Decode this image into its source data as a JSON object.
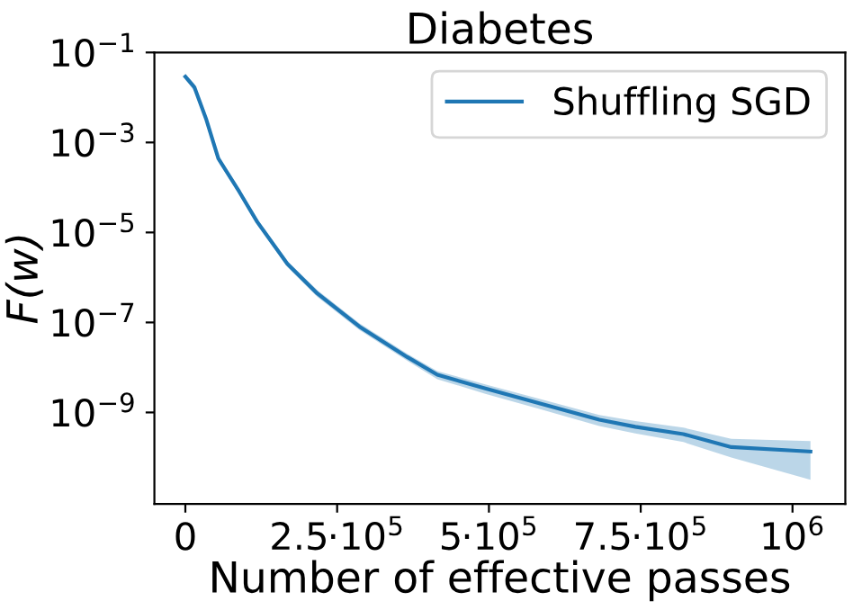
{
  "chart_data": {
    "type": "line",
    "title": "Diabetes",
    "xlabel": "Number of effective passes",
    "ylabel": "F(w)",
    "x": [
      0,
      14800,
      34600,
      54300,
      88900,
      118600,
      168000,
      217400,
      286600,
      365600,
      415000,
      494100,
      583000,
      681800,
      741100,
      820200,
      899200,
      1029600
    ],
    "series": [
      {
        "name": "Shuffling SGD",
        "color": "#1f77b4",
        "values": [
          0.029,
          0.017,
          0.0032,
          0.00044,
          8e-05,
          1.7e-05,
          2e-06,
          4.4e-07,
          8.1e-08,
          1.7e-08,
          6.9e-09,
          3.4e-09,
          1.6e-09,
          6.9e-10,
          4.8e-10,
          3.3e-10,
          1.7e-10,
          1.35e-10
        ],
        "lower": [
          0.025,
          0.014,
          0.0028,
          0.00038,
          7e-05,
          1.5e-05,
          1.7e-06,
          3.7e-07,
          6.8e-08,
          1.4e-08,
          5.5e-09,
          2.6e-09,
          1.2e-09,
          5e-10,
          3.4e-10,
          2.2e-10,
          1e-10,
          3.2e-11
        ],
        "upper": [
          0.033,
          0.02,
          0.0037,
          0.00051,
          9e-05,
          2e-05,
          2.3e-06,
          5.2e-07,
          9.6e-08,
          2e-08,
          8.3e-09,
          4.2e-09,
          2e-09,
          8.8e-10,
          6.4e-10,
          4.6e-10,
          2.6e-10,
          2.3e-10
        ]
      }
    ],
    "log": "y",
    "xlim": [
      -51000,
      1087000
    ],
    "ylim": [
      9.3e-12,
      0.1
    ],
    "xticks": [
      0,
      {
        "value": 250000,
        "label": "2.5·10$^{5}$"
      },
      {
        "value": 500000,
        "label": "5·10$^{5}$"
      },
      {
        "value": 750000,
        "label": "7.5·10$^{5}$"
      },
      {
        "value": 1000000,
        "label": "10$^{6}$"
      }
    ],
    "yticks": [
      {
        "value": 0.1,
        "label": "10$^{−1}$"
      },
      {
        "value": 0.001,
        "label": "10$^{−3}$"
      },
      {
        "value": 1e-05,
        "label": "10$^{−5}$"
      },
      {
        "value": 1e-07,
        "label": "10$^{−7}$"
      },
      {
        "value": 1e-09,
        "label": "10$^{−9}$"
      }
    ],
    "legend": "top right",
    "grid": false
  }
}
